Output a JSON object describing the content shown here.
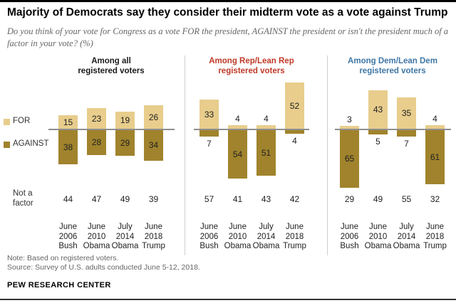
{
  "header": {
    "title": "Majority of Democrats say they consider their midterm vote as a vote against Trump",
    "subtitle": "Do you think of your vote for Congress as a vote FOR the president, AGAINST the president or isn't the president much of a factor in your vote? (%)"
  },
  "legend": {
    "for_label": "FOR",
    "against_label": "AGAINST"
  },
  "row_label": {
    "line1": "Not a",
    "line2": "factor"
  },
  "colors": {
    "for": "#e8cd8c",
    "against": "#a0832c",
    "all": "#1a1a1a",
    "rep": "#bf3927",
    "dem": "#3f76a5",
    "axis": "#8e8e8e"
  },
  "chart_data": {
    "type": "bar",
    "unit": "%",
    "categories": [
      [
        "June",
        "2006",
        "Bush"
      ],
      [
        "June",
        "2010",
        "Obama"
      ],
      [
        "July",
        "2014",
        "Obama"
      ],
      [
        "June",
        "2018",
        "Trump"
      ]
    ],
    "panels": [
      {
        "title_line1": "Among all",
        "title_line2": "registered voters",
        "color_key": "all",
        "series": [
          {
            "name": "FOR",
            "values": [
              15,
              23,
              19,
              26
            ]
          },
          {
            "name": "AGAINST",
            "values": [
              38,
              28,
              29,
              34
            ]
          },
          {
            "name": "Not a factor",
            "values": [
              44,
              47,
              49,
              39
            ]
          }
        ]
      },
      {
        "title_line1": "Among Rep/Lean Rep",
        "title_line2": "registered voters",
        "color_key": "rep",
        "series": [
          {
            "name": "FOR",
            "values": [
              33,
              4,
              4,
              52
            ]
          },
          {
            "name": "AGAINST",
            "values": [
              7,
              54,
              51,
              4
            ]
          },
          {
            "name": "Not a factor",
            "values": [
              57,
              41,
              43,
              42
            ]
          }
        ]
      },
      {
        "title_line1": "Among Dem/Lean Dem",
        "title_line2": "registered voters",
        "color_key": "dem",
        "series": [
          {
            "name": "FOR",
            "values": [
              3,
              43,
              35,
              4
            ]
          },
          {
            "name": "AGAINST",
            "values": [
              65,
              5,
              7,
              61
            ]
          },
          {
            "name": "Not a factor",
            "values": [
              29,
              49,
              55,
              32
            ]
          }
        ]
      }
    ]
  },
  "footer": {
    "note": "Note: Based on registered voters.",
    "source": "Source: Survey of U.S. adults conducted June 5-12, 2018.",
    "branding": "PEW RESEARCH CENTER"
  }
}
